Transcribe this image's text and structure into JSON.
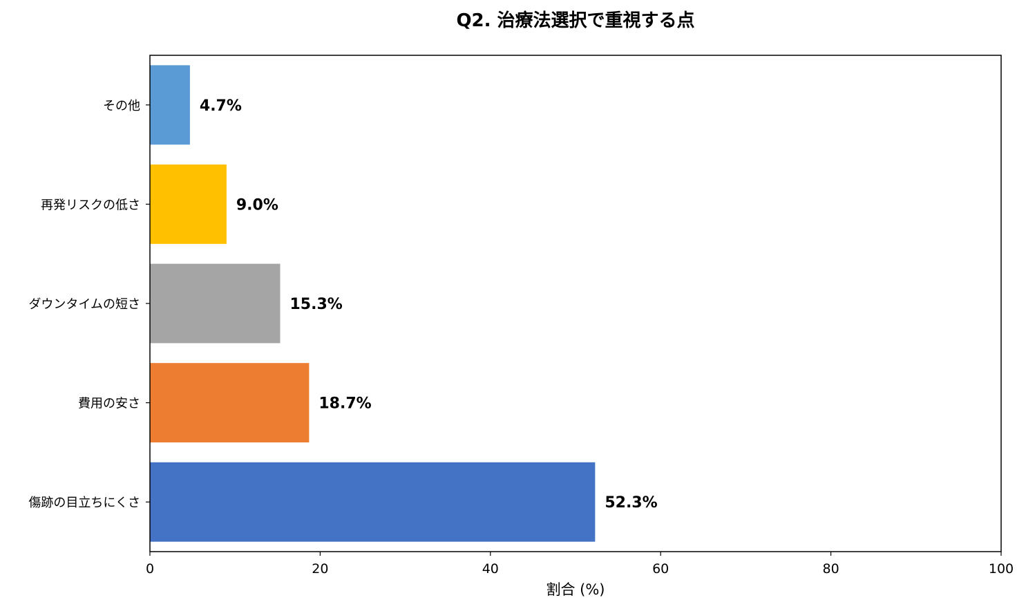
{
  "chart_data": {
    "type": "bar",
    "orientation": "horizontal",
    "title": "Q2. 治療法選択で重視する点",
    "xlabel": "割合 (%)",
    "ylabel": "",
    "xlim": [
      0,
      100
    ],
    "xticks": [
      0,
      20,
      40,
      60,
      80,
      100
    ],
    "grid": false,
    "categories": [
      "傷跡の目立ちにくさ",
      "費用の安さ",
      "ダウンタイムの短さ",
      "再発リスクの低さ",
      "その他"
    ],
    "values": [
      52.3,
      18.7,
      15.3,
      9.0,
      4.7
    ],
    "data_labels": [
      "52.3%",
      "18.7%",
      "15.3%",
      "9.0%",
      "4.7%"
    ],
    "colors": [
      "#4472C4",
      "#ED7D31",
      "#A5A5A5",
      "#FFC000",
      "#5B9BD5"
    ]
  }
}
